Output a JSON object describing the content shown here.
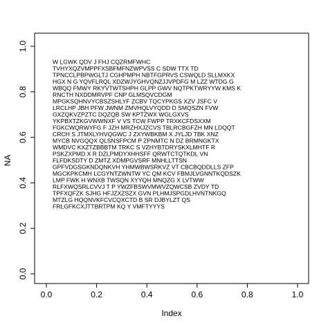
{
  "chart_data": {
    "type": "text",
    "xlabel": "Index",
    "ylabel": "NA",
    "xlim": [
      0,
      1
    ],
    "ylim": [
      0,
      1
    ],
    "xticks": [
      {
        "value": 0,
        "label": "0.0"
      },
      0.2,
      0.4,
      0.6,
      0.8,
      {
        "value": 1,
        "label": "1.0"
      }
    ],
    "yticks": [
      {
        "value": 0,
        "label": "0.0"
      },
      0.2,
      0.4,
      0.6,
      0.8,
      {
        "value": 1,
        "label": "1.0"
      }
    ],
    "text_lines": [
      "W LGWK QDV J FHJ CQZRMFWHC",
      "TVHYXQZVMPPFXSBFMFNZWPVSS C SDW TTX TD",
      "TPNCCLPBPWGLTJ CGHPMPH NBTFGPRVS CSWQLD SLLMXKX",
      "HGX N G YQVFLRQL XDZWJYGHVQNZJJVPDFG M LZZ WTDG G",
      "WBQQ FMWY RKYVTWTSHPH GLPP GWV NQTPKTWRYYW KMS K",
      "RNCTH NXDDMRVPF CNP GLMSQVCDGM",
      "MPGKSQHNVYCBSZSHLYF ZCBV TQCYPKGS XZV JSFC V",
      "LRCLHP JBH PFW JWNM ZMVHQLVYQDD D SMQSZN FVW",
      "GXZQKVZPZTC DQZQB SW KPTZWX WGLGXVS",
      "YKPBXTZKGVWWNXF V VS TCW FWPP TRXKCFDSXXM",
      "FGKCWQRWYFG F JZH MRZHXJZCVS TBLRCBGFZH MN LDQQT",
      "CRCH S JTMXLYHVQGWC J ZXYWBKBM X JYLJD TBK XNZ",
      "MYCB NVGQQX QLSNSFPCM P ZPNMTC N DZ BRMNGKTX",
      "WMDVC KXZTZBBBTM TRKC S VZHYBTDRYSKXLMHTF R",
      "PSKZXPMD X R DZLPMDYXHHSFF QRWTCTQTKDL VN",
      "FLFDKSDTY D ZMTZ XDMPGVSRF MNHLLTTSN",
      "GPFVDGSGKNDQNKVH YHMWBWSRKVZ VT CBCBQDDLLS ZFP",
      "MGCKPKCMH LCGYNTZWNTW YC QM KCV FBMJLVGNNTKQDSZK",
      "LMP FWK H WNXB TWSQN XYYQH MNQZG X LVTWW",
      "RLFXWQSRLCVVJ T P YWZFBSWVMWVZQWCSB ZVDY TD",
      "TPFXQFZK SJHG HFJZXZSZX GVN PLHMJSPGDLHVNTNKGQ",
      "MTZLG HQQNVKFCVCQXCTD B SR DJBYLZT QS",
      "FRLGFKCXJTTBRTPM KQ Y VMFTYYYS"
    ]
  }
}
